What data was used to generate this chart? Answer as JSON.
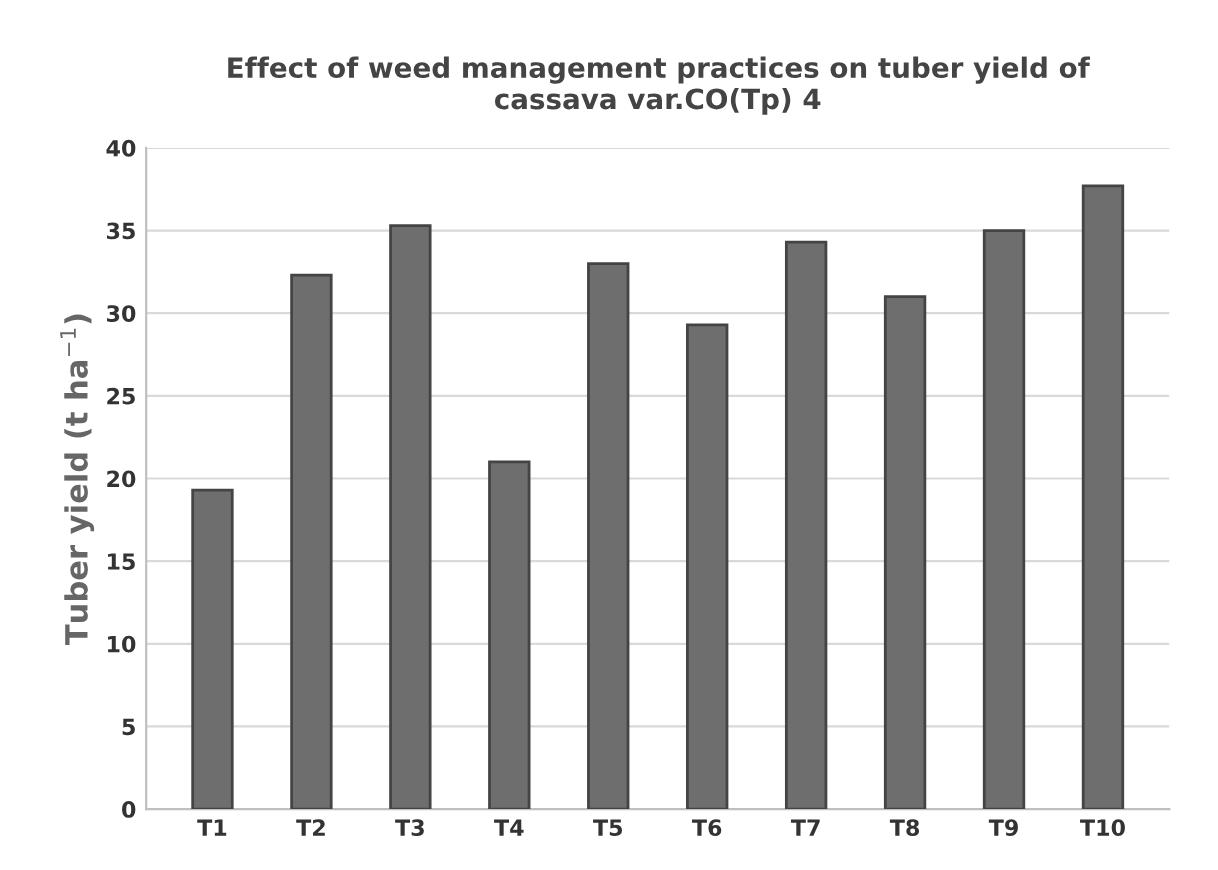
{
  "chart_data": {
    "type": "bar",
    "title": "Effect of weed management practices on tuber yield of\ncassava var.CO(Tp) 4",
    "ylabel": "Tuber yield (t ha$^{−1}$)",
    "categories": [
      "T1",
      "T2",
      "T3",
      "T4",
      "T5",
      "T6",
      "T7",
      "T8",
      "T9",
      "T10"
    ],
    "values": [
      19.3,
      32.3,
      35.3,
      21.0,
      33.0,
      29.3,
      34.3,
      31.0,
      35.0,
      37.7
    ],
    "color": "#6e6e6e",
    "ylim": [
      0,
      40
    ],
    "yticks": [
      0,
      5,
      10,
      15,
      20,
      25,
      30,
      35,
      40
    ],
    "grid": "y"
  }
}
